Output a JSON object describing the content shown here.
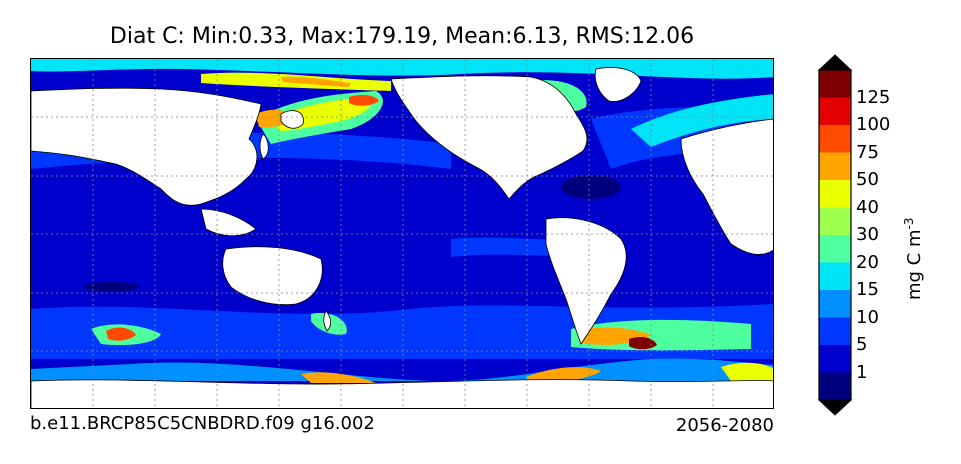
{
  "title": "Diat C: Min:0.33, Max:179.19, Mean:6.13, RMS:12.06",
  "footer_left": "b.e11.BRCP85C5CNBDRD.f09 g16.002",
  "footer_right": "2056-2080",
  "colorbar": {
    "label": "mg C m",
    "label_exponent": "-3",
    "ticks": [
      "1",
      "5",
      "10",
      "15",
      "20",
      "30",
      "40",
      "50",
      "75",
      "100",
      "125"
    ],
    "colors": [
      "#00007f",
      "#0000cd",
      "#0037ff",
      "#0090ff",
      "#00e4f7",
      "#4dff9e",
      "#9eff4d",
      "#eaff00",
      "#ffa400",
      "#ff4b00",
      "#e30000",
      "#7f0000"
    ]
  }
}
